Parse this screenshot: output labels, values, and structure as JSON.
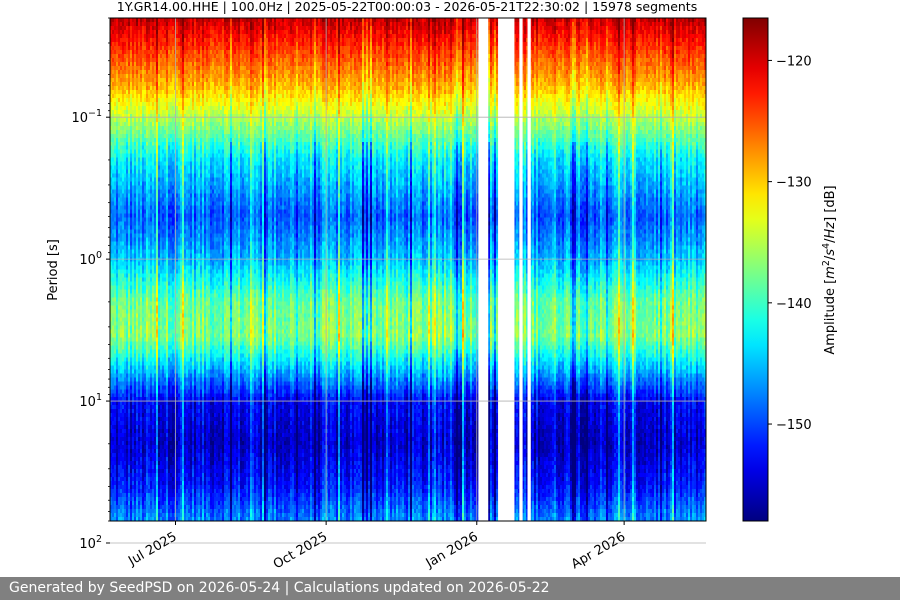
{
  "chart_data": {
    "type": "heatmap",
    "title": "1Y.GR14.00.HHE | 100.0Hz | 2025-05-22T00:00:03 - 2026-05-21T22:30:02 | 15978 segments",
    "ylabel": "Period [s]",
    "y_scale": "log",
    "y_inverted": true,
    "ylim": [
      0.02,
      70
    ],
    "y_ticks": [
      {
        "value": 0.1,
        "base": "10",
        "exp": "−1"
      },
      {
        "value": 1,
        "base": "10",
        "exp": "0"
      },
      {
        "value": 10,
        "base": "10",
        "exp": "1"
      },
      {
        "value": 100,
        "base": "10",
        "exp": "2"
      }
    ],
    "x_range": [
      "2025-05-22",
      "2026-05-21"
    ],
    "x_ticks": [
      {
        "date": "2025-07-01",
        "label": "Jul 2025"
      },
      {
        "date": "2025-10-01",
        "label": "Oct 2025"
      },
      {
        "date": "2026-01-01",
        "label": "Jan 2026"
      },
      {
        "date": "2026-04-01",
        "label": "Apr 2026"
      }
    ],
    "data_gaps": [
      [
        "2026-01-02",
        "2026-01-08"
      ],
      [
        "2026-01-14",
        "2026-01-24"
      ],
      [
        "2026-01-27",
        "2026-01-29"
      ],
      [
        "2026-02-01",
        "2026-02-03"
      ]
    ],
    "grid": true,
    "colormap": "jet",
    "colorbar": {
      "label": "Amplitude [m²/s⁴/Hz] [dB]",
      "range": [
        -158,
        -116.5
      ],
      "ticks": [
        -120,
        -130,
        -140,
        -150
      ],
      "tick_labels": [
        "−120",
        "−130",
        "−140",
        "−150"
      ]
    },
    "amplitude_profile_db": [
      {
        "period": 0.02,
        "db": -119
      },
      {
        "period": 0.03,
        "db": -123
      },
      {
        "period": 0.06,
        "db": -129
      },
      {
        "period": 0.1,
        "db": -135
      },
      {
        "period": 0.2,
        "db": -143
      },
      {
        "period": 0.5,
        "db": -149
      },
      {
        "period": 1.0,
        "db": -145
      },
      {
        "period": 2.0,
        "db": -138
      },
      {
        "period": 3.5,
        "db": -137
      },
      {
        "period": 6.0,
        "db": -145
      },
      {
        "period": 10,
        "db": -153
      },
      {
        "period": 20,
        "db": -155
      },
      {
        "period": 40,
        "db": -152
      },
      {
        "period": 70,
        "db": -147
      }
    ]
  },
  "footer": {
    "text": "Generated by SeedPSD on 2026-05-24 | Calculations updated on 2026-05-22"
  }
}
